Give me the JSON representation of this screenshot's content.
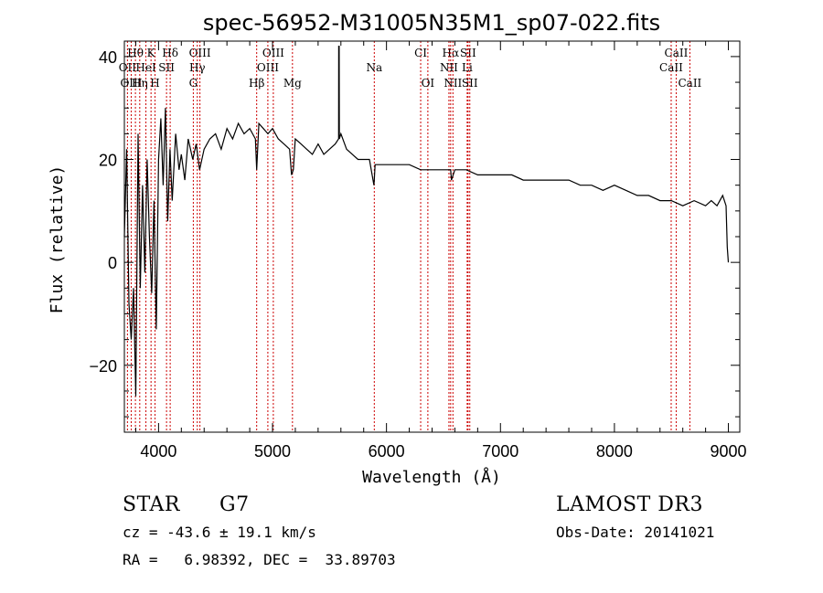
{
  "chart_data": {
    "type": "line",
    "title": "spec-56952-M31005N35M1_sp07-022.fits",
    "xlabel": "Wavelength (Å)",
    "ylabel": "Flux (relative)",
    "xlim": [
      3700,
      9100
    ],
    "ylim": [
      -33,
      43
    ],
    "x_ticks": [
      4000,
      5000,
      6000,
      7000,
      8000,
      9000
    ],
    "y_ticks": [
      -20,
      0,
      20,
      40
    ],
    "series": [
      {
        "name": "spectrum",
        "x": [
          3700,
          3720,
          3740,
          3760,
          3780,
          3800,
          3820,
          3840,
          3860,
          3880,
          3900,
          3920,
          3940,
          3960,
          3980,
          4000,
          4020,
          4040,
          4060,
          4080,
          4100,
          4120,
          4150,
          4180,
          4200,
          4230,
          4260,
          4300,
          4330,
          4360,
          4400,
          4450,
          4500,
          4550,
          4600,
          4650,
          4700,
          4750,
          4800,
          4850,
          4861,
          4880,
          4920,
          4960,
          5000,
          5050,
          5100,
          5150,
          5167,
          5183,
          5200,
          5250,
          5300,
          5350,
          5400,
          5450,
          5500,
          5550,
          5580,
          5581,
          5585,
          5586,
          5600,
          5650,
          5700,
          5750,
          5800,
          5850,
          5890,
          5893,
          5900,
          5950,
          6000,
          6100,
          6200,
          6300,
          6400,
          6500,
          6563,
          6570,
          6600,
          6700,
          6800,
          6900,
          7000,
          7100,
          7200,
          7300,
          7400,
          7500,
          7600,
          7700,
          7800,
          7900,
          8000,
          8100,
          8200,
          8300,
          8400,
          8500,
          8600,
          8700,
          8800,
          8850,
          8900,
          8950,
          8980,
          8990,
          9000
        ],
        "values": [
          5,
          22,
          -8,
          -15,
          -5,
          -26,
          25,
          -5,
          15,
          -2,
          20,
          5,
          -6,
          12,
          -13,
          20,
          28,
          15,
          30,
          8,
          22,
          12,
          25,
          18,
          21,
          16,
          24,
          20,
          23,
          18,
          22,
          24,
          25,
          22,
          26,
          24,
          27,
          25,
          26,
          24,
          18,
          27,
          26,
          25,
          26,
          24,
          23,
          22,
          17,
          18,
          24,
          23,
          22,
          21,
          23,
          21,
          22,
          23,
          24,
          42,
          42,
          24,
          25,
          22,
          21,
          20,
          20,
          20,
          15,
          16,
          19,
          19,
          19,
          19,
          19,
          18,
          18,
          18,
          18,
          16,
          18,
          18,
          17,
          17,
          17,
          17,
          16,
          16,
          16,
          16,
          16,
          15,
          15,
          14,
          15,
          14,
          13,
          13,
          12,
          12,
          11,
          12,
          11,
          12,
          11,
          13,
          11,
          3,
          0
        ]
      }
    ],
    "lines": [
      {
        "label": "Hθ",
        "x": 3797,
        "row": 1
      },
      {
        "label": "K",
        "x": 3934,
        "row": 1
      },
      {
        "label": "Hδ",
        "x": 4102,
        "row": 1
      },
      {
        "label": "OIII",
        "x": 4363,
        "row": 1
      },
      {
        "label": "OIII",
        "x": 5007,
        "row": 1
      },
      {
        "label": "CI",
        "x": 6300,
        "row": 1
      },
      {
        "label": "Hα",
        "x": 6563,
        "row": 1
      },
      {
        "label": "SII",
        "x": 6716,
        "row": 1
      },
      {
        "label": "CaII",
        "x": 8542,
        "row": 1
      },
      {
        "label": "OII",
        "x": 3727,
        "row": 2
      },
      {
        "label": "HeI",
        "x": 3889,
        "row": 2
      },
      {
        "label": "SII",
        "x": 4070,
        "row": 2
      },
      {
        "label": "Hγ",
        "x": 4340,
        "row": 2
      },
      {
        "label": "OIII",
        "x": 4959,
        "row": 2
      },
      {
        "label": "Na",
        "x": 5893,
        "row": 2
      },
      {
        "label": "NII",
        "x": 6548,
        "row": 2
      },
      {
        "label": "Li",
        "x": 6708,
        "row": 2
      },
      {
        "label": "CaII",
        "x": 8498,
        "row": 2
      },
      {
        "label": "OIII",
        "x": 3760,
        "row": 3
      },
      {
        "label": "Hη",
        "x": 3835,
        "row": 3
      },
      {
        "label": "H",
        "x": 3969,
        "row": 3
      },
      {
        "label": "G",
        "x": 4305,
        "row": 3
      },
      {
        "label": "Hβ",
        "x": 4861,
        "row": 3
      },
      {
        "label": "Mg",
        "x": 5175,
        "row": 3
      },
      {
        "label": "OI",
        "x": 6363,
        "row": 3
      },
      {
        "label": "NII",
        "x": 6583,
        "row": 3
      },
      {
        "label": "SII",
        "x": 6731,
        "row": 3
      },
      {
        "label": "CaII",
        "x": 8662,
        "row": 3
      }
    ],
    "line_color": "#cc0000"
  },
  "footer": {
    "object_class": "STAR",
    "subclass": "G7",
    "survey": "LAMOST DR3",
    "redshift": "cz = -43.6 ± 19.1 km/s",
    "obs_date": "Obs-Date: 20141021",
    "coords": "RA =   6.98392, DEC =  33.89703"
  }
}
